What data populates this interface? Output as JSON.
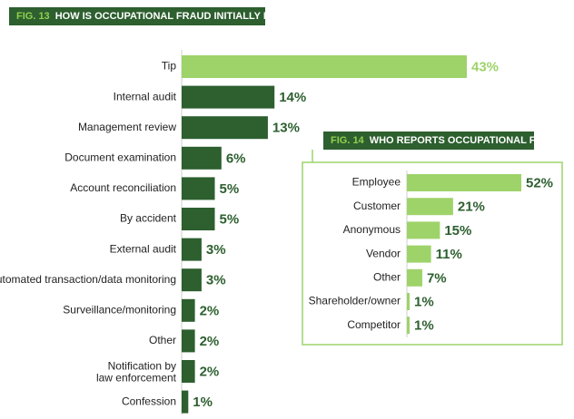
{
  "colors": {
    "dark": "#2d5f2f",
    "light": "#9ed36a",
    "title_bg": "#2d5f2f",
    "title_num": "#8fd14f",
    "frame": "#9ed36a"
  },
  "chart_data": [
    {
      "type": "bar",
      "orientation": "horizontal",
      "fig_label": "FIG. 13",
      "title": "HOW IS OCCUPATIONAL FRAUD INITIALLY DETECTED?",
      "categories": [
        "Tip",
        "Internal audit",
        "Management review",
        "Document examination",
        "Account reconciliation",
        "By accident",
        "External audit",
        "Automated transaction/data monitoring",
        "Surveillance/monitoring",
        "Other",
        "Notification by law enforcement",
        "Confession"
      ],
      "category_lines": [
        [
          "Tip"
        ],
        [
          "Internal audit"
        ],
        [
          "Management review"
        ],
        [
          "Document examination"
        ],
        [
          "Account reconciliation"
        ],
        [
          "By accident"
        ],
        [
          "External audit"
        ],
        [
          "Automated transaction/data monitoring"
        ],
        [
          "Surveillance/monitoring"
        ],
        [
          "Other"
        ],
        [
          "Notification by",
          "law enforcement"
        ],
        [
          "Confession"
        ]
      ],
      "values": [
        43,
        14,
        13,
        6,
        5,
        5,
        3,
        3,
        2,
        2,
        2,
        1
      ],
      "labels": [
        "43%",
        "14%",
        "13%",
        "6%",
        "5%",
        "5%",
        "3%",
        "3%",
        "2%",
        "2%",
        "2%",
        "1%"
      ],
      "highlight": "Tip",
      "unit": "%"
    },
    {
      "type": "bar",
      "orientation": "horizontal",
      "fig_label": "FIG. 14",
      "title": "WHO REPORTS OCCUPATIONAL FRAUD?",
      "categories": [
        "Employee",
        "Customer",
        "Anonymous",
        "Vendor",
        "Other",
        "Shareholder/owner",
        "Competitor"
      ],
      "values": [
        52,
        21,
        15,
        11,
        7,
        1,
        1
      ],
      "labels": [
        "52%",
        "21%",
        "15%",
        "11%",
        "7%",
        "1%",
        "1%"
      ],
      "unit": "%"
    }
  ]
}
